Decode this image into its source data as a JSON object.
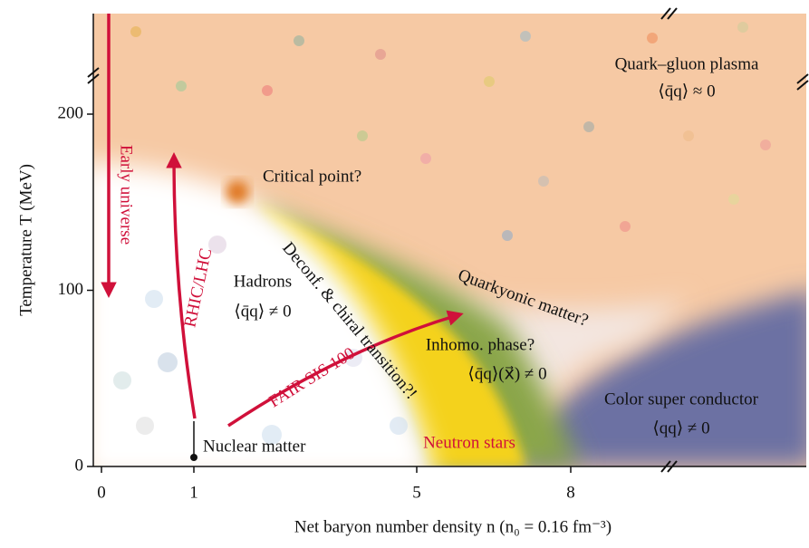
{
  "axes": {
    "x_label": "Net baryon number density n (n₀ = 0.16 fm⁻³)",
    "y_label": "Temperature T (MeV)",
    "xticks": [
      0,
      1,
      5,
      8
    ],
    "yticks": [
      0,
      100,
      200
    ]
  },
  "regions": {
    "qgp": "Quark–gluon plasma",
    "qgp_condensate": "⟨q̄q⟩ ≈ 0",
    "critical_point": "Critical point?",
    "hadrons": "Hadrons",
    "hadrons_condensate": "⟨q̄q⟩ ≠ 0",
    "transition": "Deconf. & chiral transition?!",
    "quarkyonic": "Quarkyonic matter?",
    "inhomo": "Inhomo. phase?",
    "inhomo_condensate": "⟨q̄q⟩(x⃗) ≠ 0",
    "csc": "Color super conductor",
    "csc_condensate": "⟨qq⟩ ≠ 0"
  },
  "annotations": {
    "early_universe": "Early universe",
    "rhic": "RHIC/LHC",
    "fair": "FAIR SIS 100",
    "neutron_stars": "Neutron stars",
    "nuclear_matter": "Nuclear matter"
  }
}
